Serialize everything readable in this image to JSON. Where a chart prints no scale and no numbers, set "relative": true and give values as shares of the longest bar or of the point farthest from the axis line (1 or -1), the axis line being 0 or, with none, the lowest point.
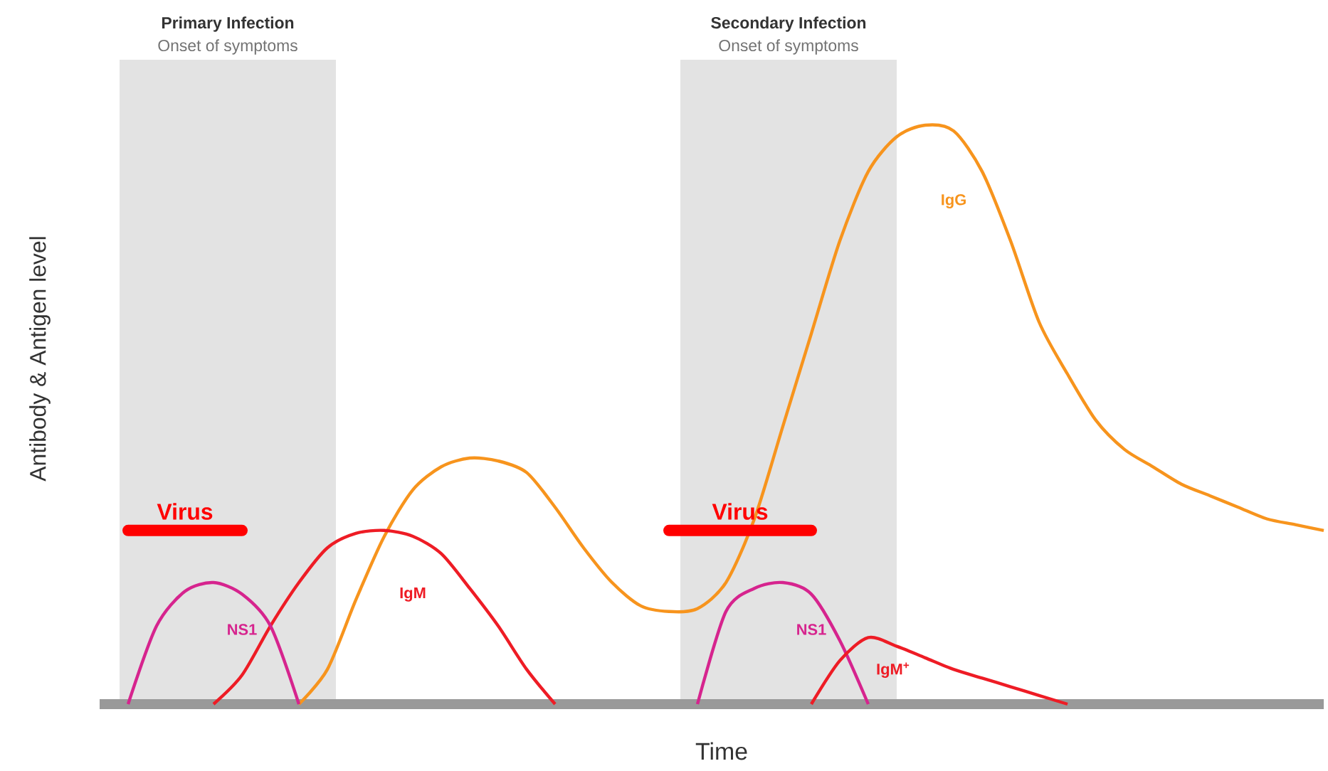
{
  "chart_data": {
    "type": "line",
    "relative": true,
    "xlabel": "Time",
    "ylabel": "Antibody & Antigen level",
    "marker": "none",
    "categories": [
      null,
      null,
      null,
      null,
      null,
      null,
      null,
      null,
      null,
      null,
      null,
      null,
      null,
      null,
      null,
      null,
      null,
      null,
      null,
      null,
      null,
      null,
      null,
      null,
      null,
      null,
      null,
      null,
      null,
      null,
      null,
      null,
      null,
      null,
      null,
      null,
      null,
      null,
      null,
      null,
      null,
      null,
      null,
      null
    ],
    "series": [
      {
        "name": "IgG",
        "color": "#f7941d",
        "values": [
          null,
          null,
          null,
          null,
          null,
          null,
          null,
          0,
          0.06,
          0.18,
          0.29,
          0.37,
          0.41,
          0.425,
          0.42,
          0.4,
          0.34,
          0.27,
          0.21,
          0.17,
          0.16,
          0.165,
          0.21,
          0.32,
          0.48,
          0.64,
          0.8,
          0.92,
          0.98,
          1.0,
          0.99,
          0.92,
          0.8,
          0.66,
          0.57,
          0.49,
          0.44,
          0.41,
          0.38,
          0.36,
          0.34,
          0.32,
          0.31,
          0.3
        ]
      },
      {
        "name": "IgM",
        "color": "#ee1c25",
        "values": [
          null,
          null,
          null,
          null,
          0,
          0.05,
          0.135,
          0.21,
          0.27,
          0.295,
          0.3,
          0.29,
          0.26,
          0.2,
          0.135,
          0.06,
          0,
          null,
          null,
          null,
          null,
          null,
          null,
          null,
          null,
          null,
          null,
          null,
          null,
          null,
          null,
          null,
          null,
          null,
          null,
          null,
          null,
          null,
          null,
          null,
          null,
          null,
          null,
          null
        ]
      },
      {
        "name": "NS1",
        "color": "#d6248e",
        "values": [
          null,
          0,
          0.135,
          0.195,
          0.21,
          0.19,
          0.135,
          0,
          null,
          null,
          null,
          null,
          null,
          null,
          null,
          null,
          null,
          null,
          null,
          null,
          null,
          0,
          0.16,
          0.2,
          0.21,
          0.19,
          0.11,
          0,
          null,
          null,
          null,
          null,
          null,
          null,
          null,
          null,
          null,
          null,
          null,
          null,
          null,
          null,
          null,
          null
        ]
      },
      {
        "name": "IgM$^{+}$",
        "color": "#ee1c25",
        "values": [
          null,
          null,
          null,
          null,
          null,
          null,
          null,
          null,
          null,
          null,
          null,
          null,
          null,
          null,
          null,
          null,
          null,
          null,
          null,
          null,
          null,
          null,
          null,
          null,
          null,
          0,
          0.075,
          0.115,
          0.1,
          0.08,
          0.06,
          0.045,
          0.03,
          0.015,
          0,
          null,
          null,
          null,
          null,
          null,
          null,
          null,
          null,
          null
        ]
      },
      {
        "name": "Virus",
        "color": "#ff0000",
        "values": [
          null,
          0.3,
          0.3,
          0.3,
          0.3,
          0.3,
          null,
          null,
          null,
          null,
          null,
          null,
          null,
          null,
          null,
          null,
          null,
          null,
          null,
          null,
          0.3,
          0.3,
          0.3,
          0.3,
          0.3,
          0.3,
          null,
          null,
          null,
          null,
          null,
          null,
          null,
          null,
          null,
          null,
          null,
          null,
          null,
          null,
          null,
          null,
          null,
          null
        ]
      }
    ],
    "annotations": [
      "Primary Infection",
      "Onset of symptoms",
      "Secondary Infection",
      "Onset of symptoms"
    ]
  }
}
